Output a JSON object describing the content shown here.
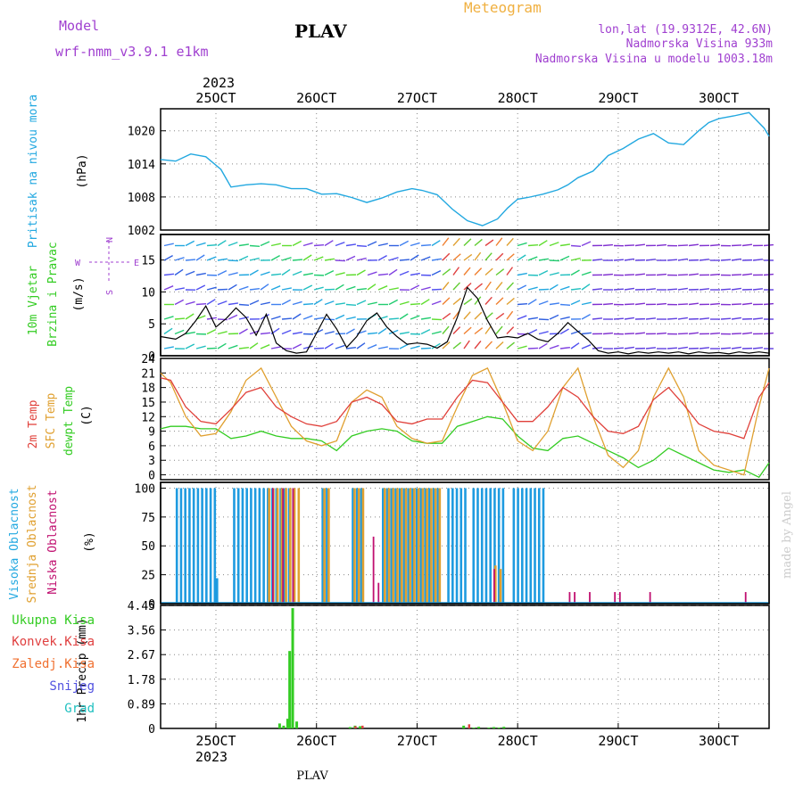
{
  "header": {
    "model_label": "Model",
    "model_name": "wrf-nmm_v3.9.1  e1km",
    "station": "PLAV",
    "app_title": "Meteogram",
    "coords": "lon,lat (19.9312E, 42.6N)",
    "altitude": "Nadmorska Visina 933m",
    "model_altitude": "Nadmorska Visina u modelu 1003.18m",
    "footer_station": "PLAV",
    "watermark": "made by Angel"
  },
  "colors": {
    "pressure": "#22a8e0",
    "t2m": "#e0403a",
    "sfc": "#e0a030",
    "dewpt": "#33cc22",
    "high_cloud": "#1e9be0",
    "mid_cloud": "#e0a030",
    "low_cloud": "#c01070",
    "precip_total": "#33cc22",
    "precip_conv": "#e04040",
    "purple": "#a040d0",
    "orange": "#f0b040"
  },
  "chart_data": [
    {
      "type": "line",
      "panel": "pressure",
      "ylabel": [
        "Pritisak na nivou mora",
        "(hPa)"
      ],
      "year": "2023",
      "x_ticks": [
        "25OCT",
        "26OCT",
        "27OCT",
        "28OCT",
        "29OCT",
        "30OCT"
      ],
      "yticks": [
        1002,
        1008,
        1014,
        1020
      ],
      "ylim": [
        1002,
        1024
      ],
      "xlim": [
        24.45,
        30.5
      ],
      "series": [
        {
          "x": [
            24.45,
            24.6,
            24.75,
            24.9,
            25.05,
            25.15,
            25.3,
            25.45,
            25.6,
            25.75,
            25.9,
            26.05,
            26.2,
            26.35,
            26.5,
            26.65,
            26.8,
            26.95,
            27.05,
            27.2,
            27.35,
            27.5,
            27.65,
            27.8,
            27.9,
            28.0,
            28.1,
            28.25,
            28.4,
            28.5,
            28.6,
            28.75,
            28.9,
            29.05,
            29.2,
            29.35,
            29.5,
            29.65,
            29.8,
            29.9,
            30.0,
            30.15,
            30.3,
            30.45,
            30.5
          ],
          "values": [
            1014.8,
            1014.5,
            1015.8,
            1015.3,
            1013,
            1009.8,
            1010.2,
            1010.4,
            1010.2,
            1009.5,
            1009.5,
            1008.5,
            1008.6,
            1007.9,
            1007,
            1007.8,
            1008.9,
            1009.5,
            1009.2,
            1008.4,
            1005.8,
            1003.7,
            1002.8,
            1004,
            1006,
            1007.6,
            1007.9,
            1008.5,
            1009.3,
            1010.2,
            1011.5,
            1012.7,
            1015.5,
            1016.8,
            1018.5,
            1019.5,
            1017.8,
            1017.5,
            1020,
            1021.5,
            1022.2,
            1022.7,
            1023.3,
            1020.5,
            1019
          ]
        }
      ]
    },
    {
      "type": "line",
      "panel": "wind",
      "ylabel": [
        "10m Vjetar",
        "Brzina i Pravac",
        "(m/s)"
      ],
      "compass": [
        "N",
        "S",
        "W",
        "E"
      ],
      "yticks": [
        0,
        5,
        10,
        15
      ],
      "ylim": [
        0,
        19
      ],
      "xlim": [
        24.45,
        30.5
      ],
      "series": [
        {
          "name": "speed",
          "x": [
            24.45,
            24.6,
            24.7,
            24.8,
            24.9,
            25.0,
            25.1,
            25.2,
            25.3,
            25.4,
            25.5,
            25.6,
            25.7,
            25.8,
            25.9,
            26.0,
            26.1,
            26.2,
            26.3,
            26.4,
            26.5,
            26.6,
            26.7,
            26.8,
            26.9,
            27.0,
            27.1,
            27.2,
            27.3,
            27.4,
            27.5,
            27.6,
            27.7,
            27.8,
            27.9,
            28.0,
            28.1,
            28.2,
            28.3,
            28.4,
            28.5,
            28.6,
            28.7,
            28.8,
            28.9,
            29.0,
            29.1,
            29.2,
            29.3,
            29.4,
            29.5,
            29.6,
            29.7,
            29.8,
            29.9,
            30.0,
            30.1,
            30.2,
            30.3,
            30.4,
            30.5
          ],
          "values": [
            3,
            2.6,
            3.5,
            5.5,
            7.8,
            4.5,
            5.8,
            7.5,
            6,
            3.2,
            6.5,
            2,
            0.8,
            0.4,
            0.6,
            3.5,
            6.5,
            4.2,
            1.3,
            3,
            5.5,
            6.7,
            4.5,
            3,
            1.8,
            2,
            1.8,
            1.2,
            2.2,
            6,
            10.7,
            9,
            5.5,
            2.8,
            3,
            2.8,
            3.5,
            2.6,
            2.2,
            3.5,
            5.2,
            3.8,
            2.5,
            0.8,
            0.4,
            0.6,
            0.3,
            0.6,
            0.4,
            0.6,
            0.4,
            0.6,
            0.3,
            0.6,
            0.4,
            0.5,
            0.3,
            0.6,
            0.4,
            0.6,
            0.4
          ]
        }
      ]
    },
    {
      "type": "line",
      "panel": "temperature",
      "ylabel": [
        "2m Temp",
        "SFC Temp",
        "dewpt Temp",
        "(C)"
      ],
      "yticks": [
        0,
        3,
        6,
        9,
        12,
        15,
        18,
        21,
        24
      ],
      "ylim": [
        -1,
        24
      ],
      "xlim": [
        24.45,
        30.5
      ],
      "series": [
        {
          "name": "2m Temp",
          "x": [
            24.45,
            24.55,
            24.7,
            24.85,
            25.0,
            25.15,
            25.3,
            25.45,
            25.6,
            25.75,
            25.9,
            26.05,
            26.2,
            26.35,
            26.5,
            26.65,
            26.8,
            26.95,
            27.1,
            27.25,
            27.4,
            27.55,
            27.7,
            27.85,
            28.0,
            28.15,
            28.3,
            28.45,
            28.6,
            28.75,
            28.9,
            29.05,
            29.2,
            29.35,
            29.5,
            29.65,
            29.8,
            29.95,
            30.1,
            30.25,
            30.4,
            30.5
          ],
          "values": [
            20,
            19.5,
            14,
            11,
            10.5,
            13.5,
            17,
            18,
            14,
            12,
            10.5,
            10,
            11,
            15,
            16,
            14.5,
            11,
            10.5,
            11.5,
            11.5,
            16,
            19.5,
            19,
            15,
            11,
            11,
            14,
            18,
            16,
            12,
            9,
            8.5,
            10,
            15.5,
            18,
            14.5,
            10.5,
            9,
            8.5,
            7.5,
            16,
            19
          ]
        },
        {
          "name": "SFC Temp",
          "x": [
            24.45,
            24.55,
            24.7,
            24.85,
            25.0,
            25.15,
            25.3,
            25.45,
            25.6,
            25.75,
            25.9,
            26.05,
            26.2,
            26.35,
            26.5,
            26.65,
            26.8,
            26.95,
            27.1,
            27.25,
            27.4,
            27.55,
            27.7,
            27.85,
            28.0,
            28.15,
            28.3,
            28.45,
            28.6,
            28.75,
            28.9,
            29.05,
            29.2,
            29.35,
            29.5,
            29.65,
            29.8,
            29.95,
            30.1,
            30.25,
            30.4,
            30.5
          ],
          "values": [
            21,
            19,
            12,
            8,
            8.5,
            13,
            19.5,
            22,
            16,
            10,
            7,
            6,
            7,
            15,
            17.5,
            16,
            10,
            7.5,
            6.5,
            7,
            14,
            20.5,
            22,
            15,
            7,
            5,
            9,
            18,
            22,
            12,
            4,
            1.5,
            5,
            16,
            22,
            16,
            5,
            2,
            1,
            0,
            14,
            22
          ]
        },
        {
          "name": "dewpt Temp",
          "x": [
            24.45,
            24.55,
            24.7,
            24.85,
            25.0,
            25.15,
            25.3,
            25.45,
            25.6,
            25.75,
            25.9,
            26.05,
            26.2,
            26.35,
            26.5,
            26.65,
            26.8,
            26.95,
            27.1,
            27.25,
            27.4,
            27.55,
            27.7,
            27.85,
            28.0,
            28.15,
            28.3,
            28.45,
            28.6,
            28.75,
            28.9,
            29.05,
            29.2,
            29.35,
            29.5,
            29.65,
            29.8,
            29.95,
            30.1,
            30.25,
            30.4,
            30.5
          ],
          "values": [
            9.5,
            10,
            10,
            9.5,
            9.5,
            7.5,
            8,
            9,
            8,
            7.5,
            7.5,
            7,
            5,
            8,
            9,
            9.5,
            9,
            7,
            6.5,
            6.5,
            10,
            11,
            12,
            11.5,
            8,
            5.5,
            5,
            7.5,
            8,
            6.5,
            5,
            3.5,
            1.5,
            3,
            5.5,
            4,
            2.5,
            1,
            0.5,
            1,
            -0.5,
            2.5
          ]
        }
      ]
    },
    {
      "type": "bar",
      "panel": "cloud",
      "ylabel": [
        "Visoka Oblacnost",
        "Srednja Oblacnost",
        "Niska Oblacnost",
        "(%)"
      ],
      "yticks": [
        0,
        25,
        50,
        75,
        100
      ],
      "ylim": [
        0,
        105
      ],
      "xlim": [
        24.45,
        30.5
      ],
      "series": [
        {
          "name": "Visoka Oblacnost",
          "x_blocks": [
            [
              24.6,
              24.98
            ],
            [
              25.17,
              25.8
            ],
            [
              26.05,
              26.1
            ],
            [
              26.35,
              26.45
            ],
            [
              26.65,
              27.2
            ],
            [
              27.3,
              27.5
            ],
            [
              27.55,
              27.85
            ],
            [
              27.95,
              28.25
            ]
          ],
          "values_blocks": [
            100,
            100,
            100,
            100,
            100,
            100,
            100,
            100
          ],
          "extra": [
            {
              "x": 25.0,
              "v": 22
            },
            {
              "x": 27.55,
              "v": 22
            }
          ]
        },
        {
          "name": "Srednja Oblacnost",
          "x_blocks": [
            [
              25.5,
              25.8
            ],
            [
              26.05,
              26.1
            ],
            [
              26.35,
              26.45
            ],
            [
              26.65,
              27.2
            ]
          ],
          "values_blocks": [
            100,
            100,
            100,
            100
          ],
          "extra": [
            {
              "x": 27.75,
              "v": 33
            },
            {
              "x": 27.8,
              "v": 30
            }
          ]
        },
        {
          "name": "Niska Oblacnost",
          "x": [
            25.55,
            25.65,
            25.75,
            26.55,
            26.6,
            27.75,
            28.5,
            28.55,
            28.7,
            28.95,
            29.0,
            29.3,
            30.25
          ],
          "values": [
            100,
            100,
            100,
            58,
            18,
            30,
            10,
            10,
            10,
            10,
            10,
            10,
            10
          ]
        }
      ]
    },
    {
      "type": "bar",
      "panel": "precip",
      "ylabel": [
        "1hr Precip (mm)"
      ],
      "legend": [
        "Ukupna Kisa",
        "Konvek.Kisa",
        "Zaledj.Kisa",
        "Snijeg",
        "Grad"
      ],
      "yticks": [
        0,
        0.89,
        1.78,
        2.67,
        3.56,
        4.45
      ],
      "ylim": [
        0,
        4.45
      ],
      "xlim": [
        24.45,
        30.5
      ],
      "series": [
        {
          "name": "Ukupna Kisa",
          "x": [
            25.62,
            25.66,
            25.7,
            25.72,
            25.75,
            25.79,
            26.32,
            26.37,
            26.42,
            27.45,
            27.55,
            27.6,
            27.7,
            27.75,
            27.8,
            27.85
          ],
          "values": [
            0.18,
            0.1,
            0.35,
            2.8,
            4.35,
            0.25,
            0.05,
            0.1,
            0.08,
            0.1,
            0.03,
            0.06,
            0.03,
            0.05,
            0.03,
            0.06
          ]
        },
        {
          "name": "Konvek.Kisa",
          "x": [
            26.35,
            26.42,
            27.48
          ],
          "values": [
            0.08,
            0.1,
            0.15
          ]
        }
      ],
      "x_ticks": [
        "25OCT",
        "26OCT",
        "27OCT",
        "28OCT",
        "29OCT",
        "30OCT"
      ],
      "year": "2023"
    }
  ]
}
